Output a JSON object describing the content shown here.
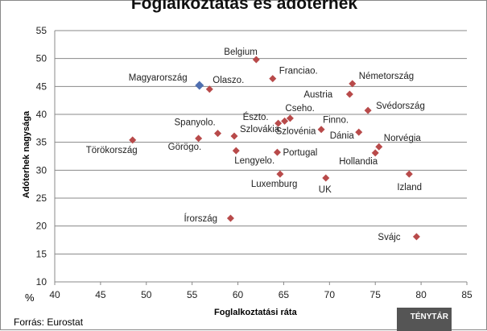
{
  "chart_data": {
    "type": "scatter",
    "title": "Foglalkoztatás és adóterhek",
    "xlabel": "Foglalkoztatási  ráta",
    "ylabel": "Adóterhek nagysága",
    "unit": "%",
    "xlim": [
      40,
      85
    ],
    "ylim": [
      10,
      55
    ],
    "xticks": [
      40,
      45,
      50,
      55,
      60,
      65,
      70,
      75,
      80,
      85
    ],
    "yticks": [
      10,
      15,
      20,
      25,
      30,
      35,
      40,
      45,
      50,
      55
    ],
    "grid": "horizontal",
    "colors": {
      "highlight": "#4f6fb0",
      "default": "#b84a4a"
    },
    "points": [
      {
        "label": "Belgium",
        "x": 62.0,
        "y": 49.8
      },
      {
        "label": "Franciao.",
        "x": 63.8,
        "y": 46.4
      },
      {
        "label": "Magyarország",
        "x": 55.8,
        "y": 45.2,
        "highlight": true
      },
      {
        "label": "Olaszo.",
        "x": 56.9,
        "y": 44.5
      },
      {
        "label": "Németország",
        "x": 72.5,
        "y": 45.5
      },
      {
        "label": "Austria",
        "x": 72.2,
        "y": 43.6
      },
      {
        "label": "Svédország",
        "x": 74.2,
        "y": 40.7
      },
      {
        "label": "Észto.",
        "x": 64.4,
        "y": 38.4
      },
      {
        "label": "Cseho.",
        "x": 65.7,
        "y": 39.3
      },
      {
        "label": "Szlovénia",
        "x": 65.1,
        "y": 38.8
      },
      {
        "label": "Finno.",
        "x": 69.1,
        "y": 37.3
      },
      {
        "label": "Dánia",
        "x": 73.2,
        "y": 36.8
      },
      {
        "label": "Norvégia",
        "x": 75.4,
        "y": 34.2
      },
      {
        "label": "Hollandia",
        "x": 75.0,
        "y": 33.1
      },
      {
        "label": "Törökország",
        "x": 48.5,
        "y": 35.4
      },
      {
        "label": "Görögo.",
        "x": 55.7,
        "y": 35.7
      },
      {
        "label": "Spanyolo.",
        "x": 57.8,
        "y": 36.6
      },
      {
        "label": "Szlovákia",
        "x": 59.6,
        "y": 36.1
      },
      {
        "label": "Lengyelo.",
        "x": 59.8,
        "y": 33.5
      },
      {
        "label": "Portugal",
        "x": 64.3,
        "y": 33.2
      },
      {
        "label": "Luxemburg",
        "x": 64.6,
        "y": 29.3
      },
      {
        "label": "UK",
        "x": 69.6,
        "y": 28.6
      },
      {
        "label": "Izland",
        "x": 78.7,
        "y": 29.3
      },
      {
        "label": "Írország",
        "x": 59.2,
        "y": 21.4
      },
      {
        "label": "Svájc",
        "x": 79.5,
        "y": 18.1
      }
    ]
  },
  "source": "Forrás: Eurostat",
  "logo": "TÉNYTÁR"
}
